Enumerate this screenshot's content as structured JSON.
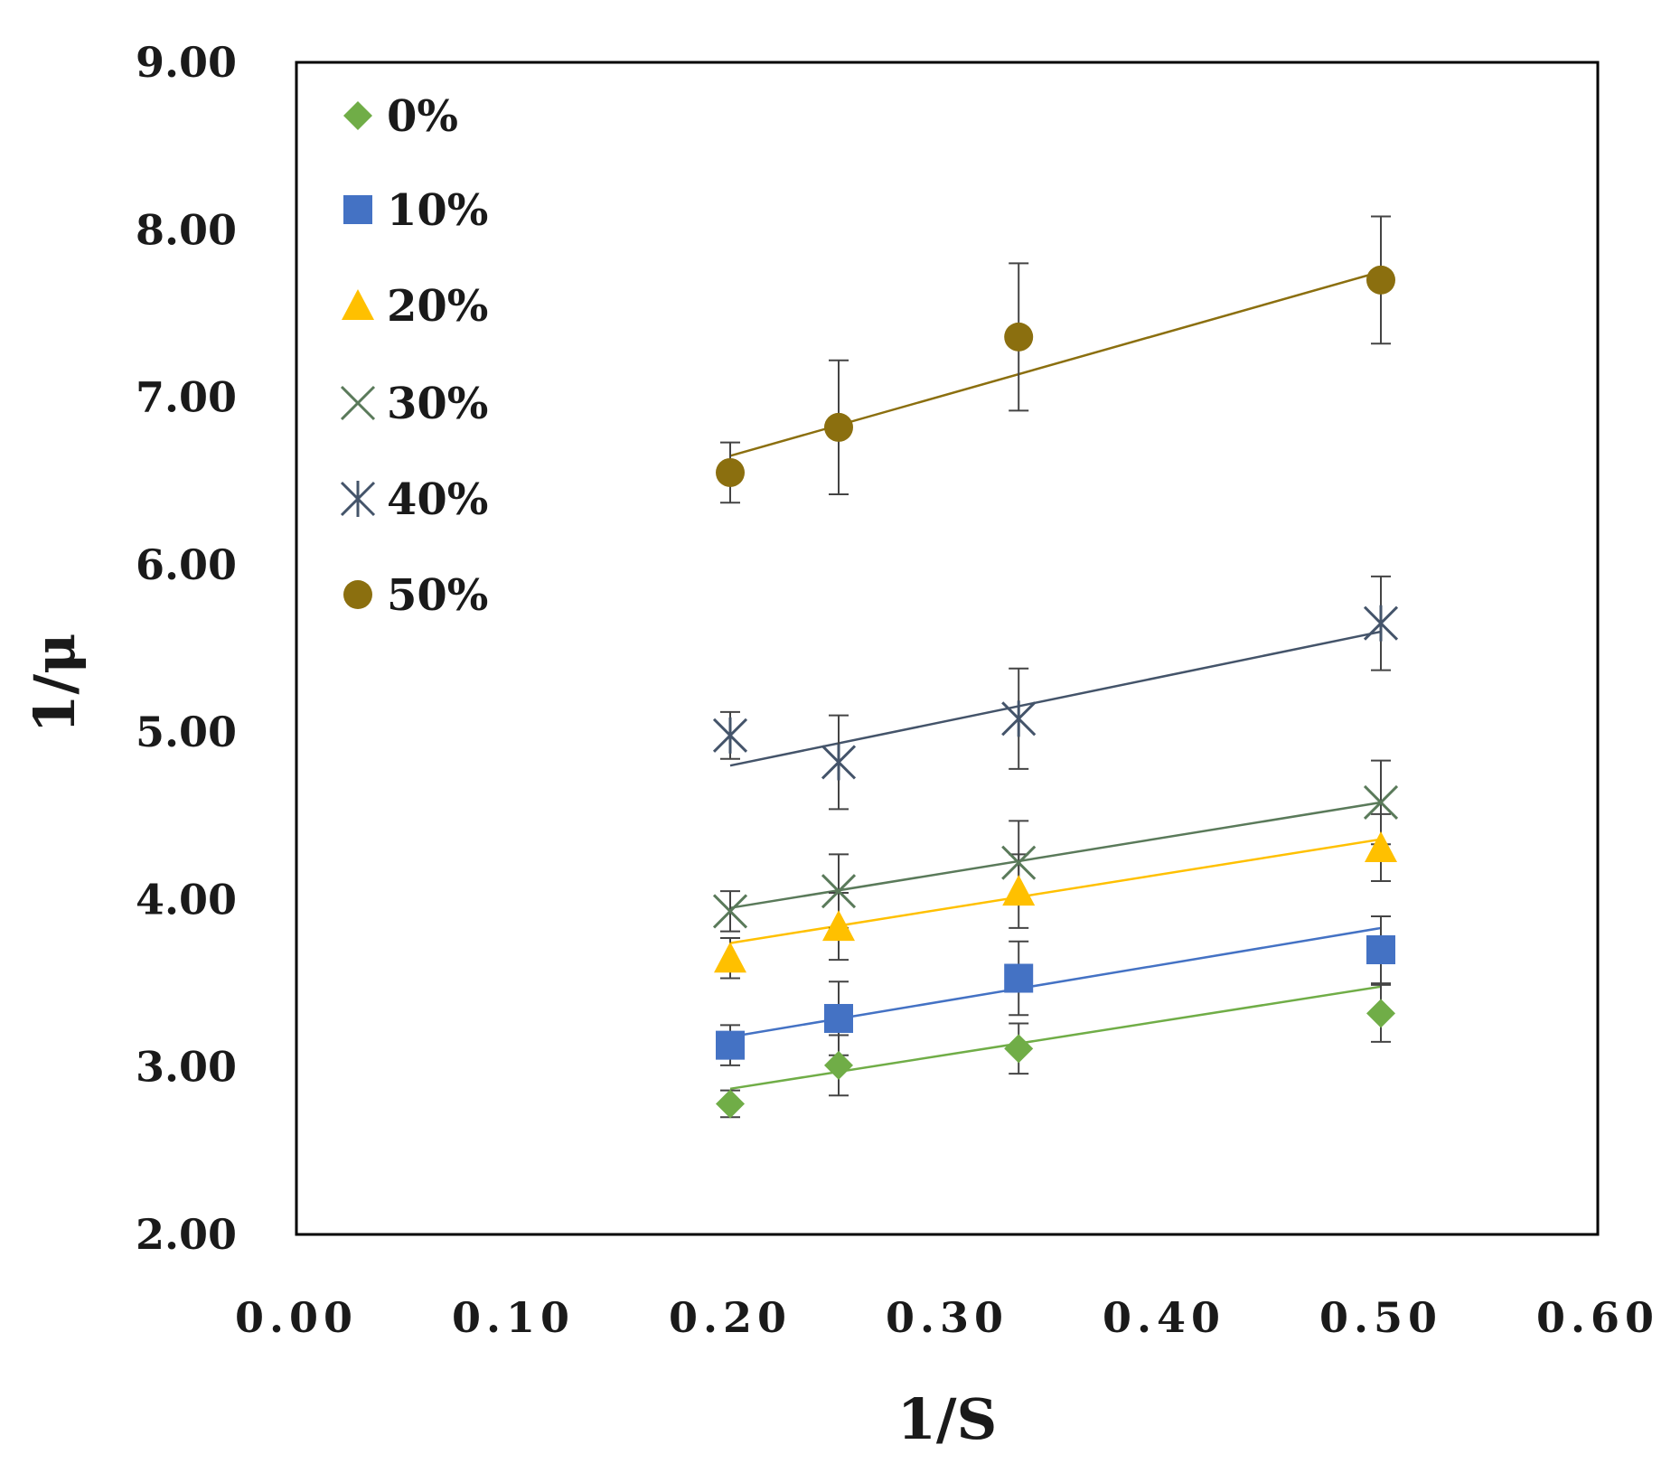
{
  "chart_data": {
    "type": "scatter",
    "title": "",
    "xlabel": "1/S",
    "ylabel": "1/μ",
    "xlim": [
      0,
      0.6
    ],
    "ylim": [
      2,
      9
    ],
    "x_ticks": [
      "0.00",
      "0.10",
      "0.20",
      "0.30",
      "0.40",
      "0.50",
      "0.60"
    ],
    "y_ticks": [
      "2.00",
      "3.00",
      "4.00",
      "5.00",
      "6.00",
      "7.00",
      "8.00",
      "9.00"
    ],
    "legend_position": "top-left",
    "trendlines": true,
    "grid": false,
    "x": [
      0.2,
      0.25,
      0.333,
      0.5
    ],
    "series": [
      {
        "name": "0%",
        "marker": "diamond",
        "color": "#70ad47",
        "values": [
          2.78,
          3.01,
          3.11,
          3.32
        ],
        "errors": [
          0.08,
          0.18,
          0.15,
          0.17
        ],
        "fit": [
          2.87,
          3.48
        ]
      },
      {
        "name": "10%",
        "marker": "square",
        "color": "#4472c4",
        "values": [
          3.13,
          3.29,
          3.53,
          3.7
        ],
        "errors": [
          0.12,
          0.22,
          0.22,
          0.2
        ],
        "fit": [
          3.18,
          3.83
        ]
      },
      {
        "name": "20%",
        "marker": "triangle",
        "color": "#ffc000",
        "values": [
          3.65,
          3.84,
          4.05,
          4.31
        ],
        "errors": [
          0.12,
          0.2,
          0.22,
          0.2
        ],
        "fit": [
          3.74,
          4.36
        ]
      },
      {
        "name": "30%",
        "marker": "x",
        "color": "#5a7a5a",
        "values": [
          3.93,
          4.05,
          4.22,
          4.58
        ],
        "errors": [
          0.12,
          0.22,
          0.25,
          0.25
        ],
        "fit": [
          3.95,
          4.58
        ]
      },
      {
        "name": "40%",
        "marker": "asterisk",
        "color": "#44546a",
        "values": [
          4.98,
          4.82,
          5.08,
          5.65
        ],
        "errors": [
          0.14,
          0.28,
          0.3,
          0.28
        ],
        "fit": [
          4.8,
          5.6
        ]
      },
      {
        "name": "50%",
        "marker": "circle",
        "color": "#8b6f0f",
        "values": [
          6.55,
          6.82,
          7.36,
          7.7
        ],
        "errors": [
          0.18,
          0.4,
          0.44,
          0.38
        ],
        "fit": [
          6.65,
          7.75
        ]
      }
    ]
  }
}
